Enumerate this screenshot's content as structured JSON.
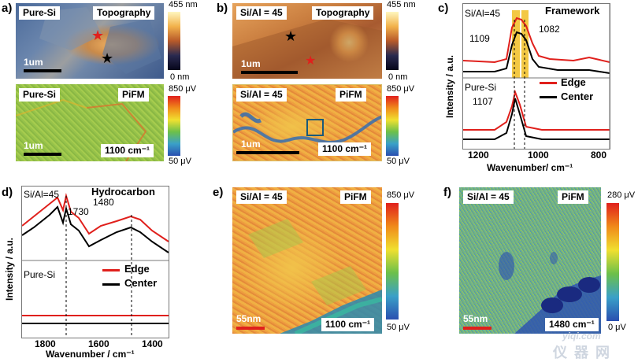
{
  "panels": {
    "a": {
      "letter": "a)",
      "top_sample": "Pure-Si",
      "top_mode": "Topography",
      "top_cmax": "455 nm",
      "top_cmin": "0 nm",
      "scale_top": "1um",
      "bottom_sample": "Pure-Si",
      "bottom_mode": "PiFM",
      "bottom_cmax": "850 μV",
      "bottom_cmin": "50 μV",
      "scale_bottom": "1um",
      "wavenumber": "1100 cm⁻¹"
    },
    "b": {
      "letter": "b)",
      "top_sample": "Si/Al = 45",
      "top_mode": "Topography",
      "top_cmax": "455 nm",
      "top_cmin": "0 nm",
      "scale_top": "1um",
      "bottom_sample": "Si/Al = 45",
      "bottom_mode": "PiFM",
      "bottom_cmax": "850 μV",
      "bottom_cmin": "50 μV",
      "scale_bottom": "1um",
      "wavenumber": "1100 cm⁻¹"
    },
    "c": {
      "letter": "c)",
      "title": "Framework",
      "top_sample": "Si/Al=45",
      "bottom_sample": "Pure-Si",
      "peak1": "1109",
      "peak2": "1082",
      "peak3": "1107",
      "ylabel": "Intensity / a.u.",
      "xlabel": "Wavenumber/ cm⁻¹",
      "ticks": [
        "1200",
        "1000",
        "800"
      ],
      "legend_edge": "Edge",
      "legend_center": "Center",
      "colors": {
        "edge": "#e0201c",
        "center": "#000000",
        "highlight": "#f2c230"
      }
    },
    "d": {
      "letter": "d)",
      "title": "Hydrocarbon",
      "top_sample": "Si/Al=45",
      "bottom_sample": "Pure-Si",
      "peak1": "1730",
      "peak2": "1480",
      "ylabel": "Intensity / a.u.",
      "xlabel": "Wavenumber / cm⁻¹",
      "ticks": [
        "1800",
        "1600",
        "1400"
      ],
      "legend_edge": "Edge",
      "legend_center": "Center"
    },
    "e": {
      "letter": "e)",
      "sample": "Si/Al = 45",
      "mode": "PiFM",
      "cmax": "850 μV",
      "cmin": "50 μV",
      "scale": "55nm",
      "wavenumber": "1100 cm⁻¹"
    },
    "f": {
      "letter": "f)",
      "sample": "Si/Al = 45",
      "mode": "PiFM",
      "cmax": "280 μV",
      "cmin": "0 μV",
      "scale": "55nm",
      "wavenumber": "1480 cm⁻¹"
    }
  },
  "watermark": {
    "site": "yiqi.com",
    "chars": "仪 器 网"
  }
}
